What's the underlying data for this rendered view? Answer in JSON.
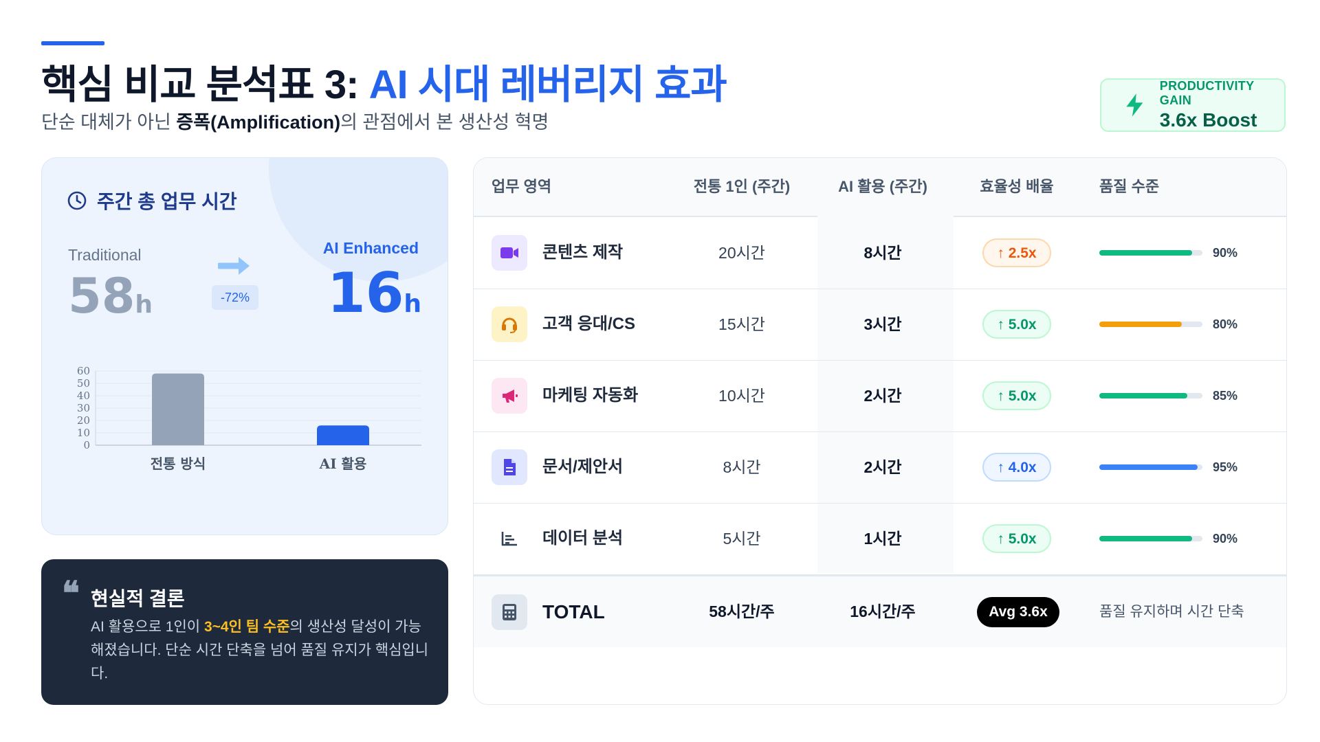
{
  "header": {
    "title_prefix": "핵심 비교 분석표 3: ",
    "title_highlight": "AI 시대 레버리지 효과",
    "subtitle_pre": "단순 대체가 아닌 ",
    "subtitle_bold": "증폭(Amplification)",
    "subtitle_post": "의 관점에서 본 생산성 혁명"
  },
  "badge": {
    "label": "PRODUCTIVITY GAIN",
    "value": "3.6x Boost",
    "icon": "bolt-icon"
  },
  "weekly_card": {
    "title": "주간 총 업무 시간",
    "traditional_label": "Traditional",
    "traditional_value": "58",
    "ai_label": "AI Enhanced",
    "ai_value": "16",
    "unit": "h",
    "reduction": "-72%"
  },
  "chart_data": {
    "type": "bar",
    "categories": [
      "전통 방식",
      "AI 활용"
    ],
    "values": [
      58,
      16
    ],
    "colors": [
      "#94a3b8",
      "#2563eb"
    ],
    "yticks": [
      0,
      10,
      20,
      30,
      40,
      50,
      60
    ],
    "ylim": [
      0,
      60
    ],
    "grid": true
  },
  "conclusion": {
    "title": "현실적 결론",
    "body_pre": "AI 활용으로 1인이 ",
    "body_highlight": "3~4인 팀 수준",
    "body_post": "의 생산성 달성이 가능해졌습니다. 단순 시간 단축을 넘어 품질 유지가 핵심입니다."
  },
  "table": {
    "headers": [
      "업무 영역",
      "전통 1인 (주간)",
      "AI 활용 (주간)",
      "효율성 배율",
      "품질 수준"
    ],
    "rows": [
      {
        "area": "콘텐츠 제작",
        "icon": "video-icon",
        "icon_bg": "#ede9fe",
        "icon_color": "#7c3aed",
        "traditional": "20시간",
        "ai": "8시간",
        "multiplier": "↑ 2.5x",
        "mult_style": "orange",
        "quality": 0.9,
        "quality_label": "90%",
        "bar_color": "#10b981"
      },
      {
        "area": "고객 응대/CS",
        "icon": "headset-icon",
        "icon_bg": "#fef3c7",
        "icon_color": "#d97706",
        "traditional": "15시간",
        "ai": "3시간",
        "multiplier": "↑ 5.0x",
        "mult_style": "green",
        "quality": 0.8,
        "quality_label": "80%",
        "bar_color": "#f59e0b"
      },
      {
        "area": "마케팅 자동화",
        "icon": "megaphone-icon",
        "icon_bg": "#fce7f3",
        "icon_color": "#db2777",
        "traditional": "10시간",
        "ai": "2시간",
        "multiplier": "↑ 5.0x",
        "mult_style": "green",
        "quality": 0.85,
        "quality_label": "85%",
        "bar_color": "#10b981"
      },
      {
        "area": "문서/제안서",
        "icon": "document-icon",
        "icon_bg": "#e0e7ff",
        "icon_color": "#4f46e5",
        "traditional": "8시간",
        "ai": "2시간",
        "multiplier": "↑ 4.0x",
        "mult_style": "blue",
        "quality": 0.95,
        "quality_label": "95%",
        "bar_color": "#3b82f6"
      },
      {
        "area": "데이터 분석",
        "icon": "chart-bars-icon",
        "icon_bg": "#ffffff",
        "icon_color": "#334155",
        "traditional": "5시간",
        "ai": "1시간",
        "multiplier": "↑ 5.0x",
        "mult_style": "green",
        "quality": 0.9,
        "quality_label": "90%",
        "bar_color": "#10b981"
      }
    ],
    "total": {
      "label": "TOTAL",
      "icon": "calculator-icon",
      "traditional": "58시간/주",
      "ai": "16시간/주",
      "avg": "Avg 3.6x",
      "note": "품질 유지하며 시간 단축"
    }
  }
}
